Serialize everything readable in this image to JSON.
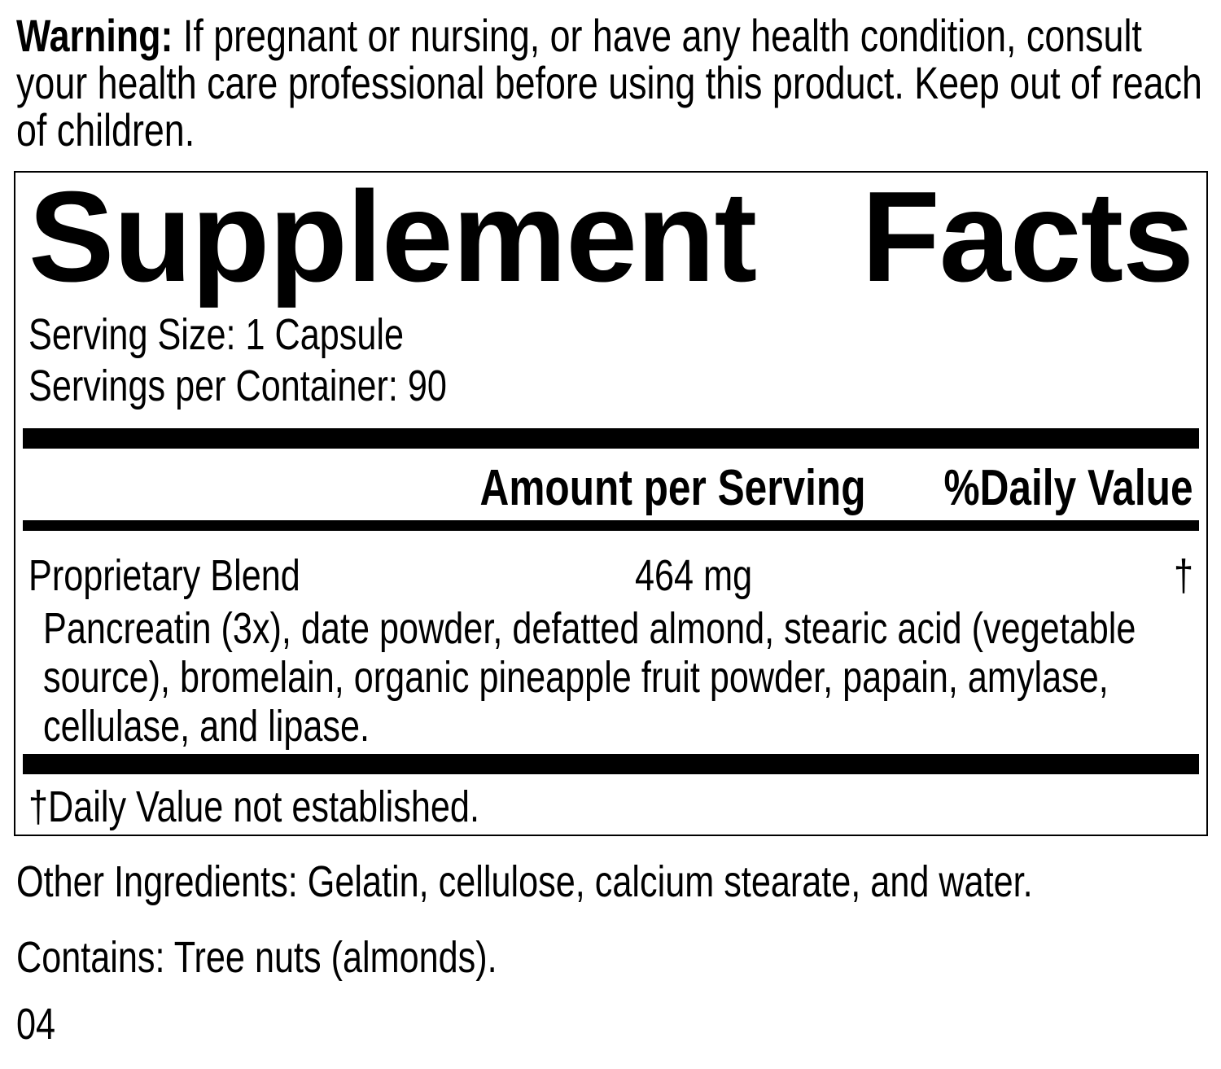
{
  "warning": {
    "label": "Warning:",
    "lines": [
      " If pregnant or nursing, or have any health condition, consult",
      "your health care professional before using this product. Keep out of reach",
      "of children."
    ]
  },
  "supplement_facts": {
    "title_words": [
      "Supplement",
      "Facts"
    ],
    "serving_size": "Serving Size: 1 Capsule",
    "servings_per_container": "Servings per Container: 90",
    "columns": {
      "amount": "Amount per Serving",
      "daily_value": "%Daily Value"
    },
    "blend": {
      "name": "Proprietary Blend",
      "amount": "464 mg",
      "daily_value": "†",
      "description_lines": [
        "Pancreatin (3x), date powder, defatted almond, stearic acid (vegetable",
        "source), bromelain, organic pineapple fruit powder, papain, amylase,",
        "cellulase, and lipase."
      ]
    },
    "footnote": "†Daily Value not established."
  },
  "other_ingredients": "Other Ingredients: Gelatin, cellulose, calcium stearate, and water.",
  "contains": "Contains: Tree nuts (almonds).",
  "code": "04",
  "colors": {
    "text": "#000000",
    "background": "#ffffff",
    "bar": "#000000"
  }
}
